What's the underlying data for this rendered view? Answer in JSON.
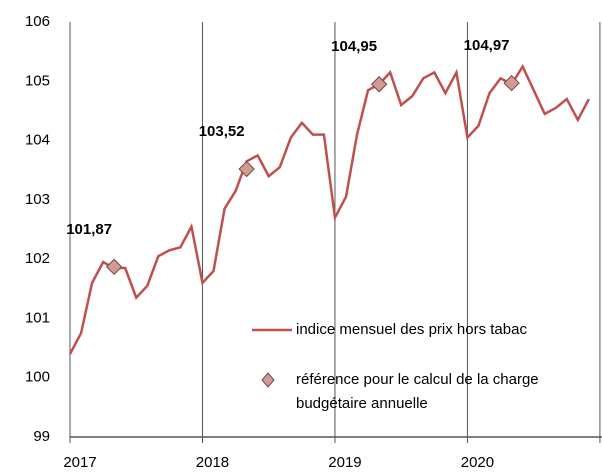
{
  "chart_data": {
    "type": "line",
    "categories": [
      "2017",
      null,
      null,
      null,
      null,
      null,
      null,
      null,
      null,
      null,
      null,
      null,
      "2018",
      null,
      null,
      null,
      null,
      null,
      null,
      null,
      null,
      null,
      null,
      null,
      "2019",
      null,
      null,
      null,
      null,
      null,
      null,
      null,
      null,
      null,
      null,
      null,
      "2020",
      null,
      null,
      null,
      null,
      null,
      null,
      null,
      null,
      null,
      null,
      null
    ],
    "series": [
      {
        "name": "indice mensuel des prix hors tabac",
        "color": "#c0504d",
        "values": [
          100.4,
          100.75,
          101.6,
          101.95,
          101.85,
          101.85,
          101.35,
          101.55,
          102.05,
          102.15,
          102.2,
          102.55,
          101.6,
          101.8,
          102.85,
          103.15,
          103.65,
          103.75,
          103.4,
          103.55,
          104.05,
          104.3,
          104.1,
          104.1,
          102.7,
          103.05,
          104.1,
          104.85,
          104.95,
          105.15,
          104.6,
          104.75,
          105.05,
          105.15,
          104.8,
          105.15,
          104.05,
          104.25,
          104.8,
          105.05,
          104.95,
          105.25,
          104.85,
          104.45,
          104.55,
          104.7,
          104.35,
          104.7
        ]
      },
      {
        "name": "référence pour le calcul de la charge budgétaire annuelle",
        "color": "#d29a92",
        "values": [
          null,
          null,
          null,
          null,
          101.87,
          null,
          null,
          null,
          null,
          null,
          null,
          null,
          null,
          null,
          null,
          null,
          103.52,
          null,
          null,
          null,
          null,
          null,
          null,
          null,
          null,
          null,
          null,
          null,
          104.95,
          null,
          null,
          null,
          null,
          null,
          null,
          null,
          null,
          null,
          null,
          null,
          104.97,
          null,
          null,
          null,
          null,
          null,
          null,
          null
        ],
        "value_labels": [
          null,
          null,
          null,
          null,
          "101,87",
          null,
          null,
          null,
          null,
          null,
          null,
          null,
          null,
          null,
          null,
          null,
          "103,52",
          null,
          null,
          null,
          null,
          null,
          null,
          null,
          null,
          null,
          null,
          null,
          "104,95",
          null,
          null,
          null,
          null,
          null,
          null,
          null,
          null,
          null,
          null,
          null,
          "104,97",
          null,
          null,
          null,
          null,
          null,
          null,
          null
        ]
      }
    ],
    "ylim": [
      99,
      106
    ],
    "yticks": [
      99,
      100,
      101,
      102,
      103,
      104,
      105,
      106
    ]
  }
}
